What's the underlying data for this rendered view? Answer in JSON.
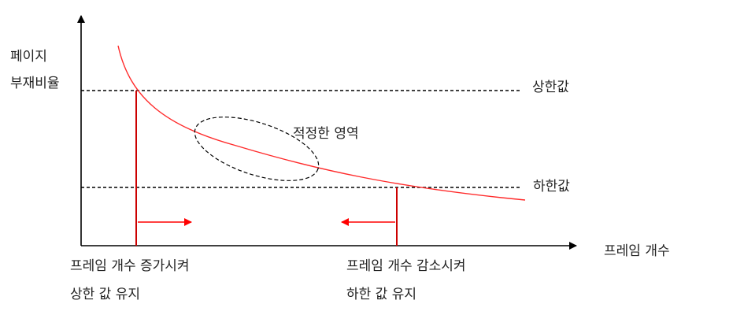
{
  "y_axis_label": [
    "페이지",
    "부재비율"
  ],
  "x_axis_label": "프레임 개수",
  "upper_bound_label": "상한값",
  "lower_bound_label": "하한값",
  "optimal_region_label": "적정한 영역",
  "left_note": [
    "프레임 개수 증가시켜",
    "상한 값 유지"
  ],
  "right_note": [
    "프레임 개수 감소시켜",
    "하한 값 유지"
  ],
  "colors": {
    "curve": "#ff2a2a",
    "marker": "#cc0000",
    "axis": "#000000",
    "dash": "#000000"
  }
}
